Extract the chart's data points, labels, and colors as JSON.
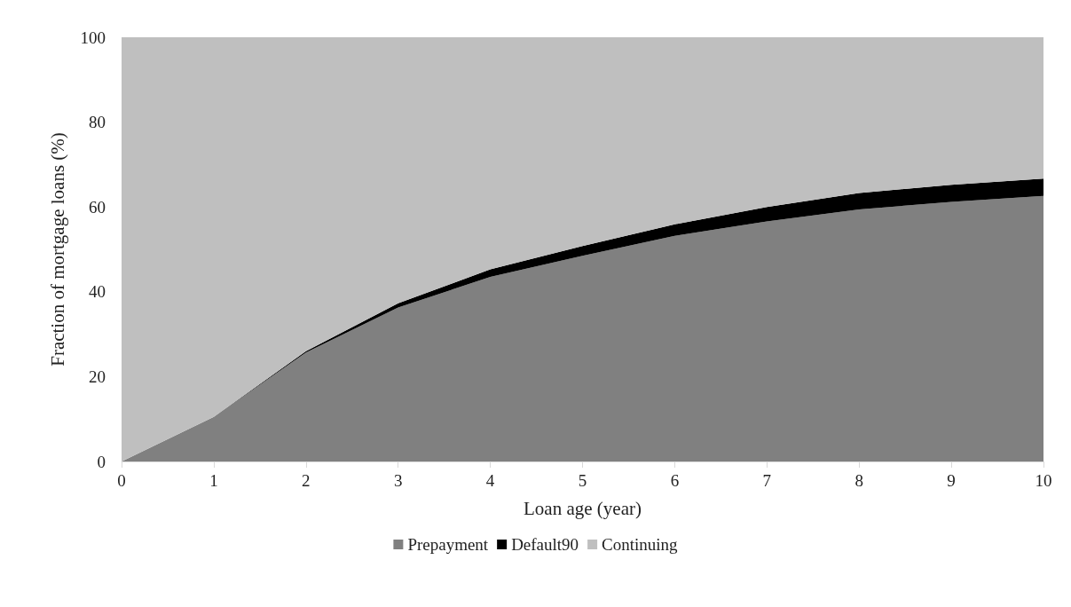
{
  "chart_data": {
    "type": "area",
    "stacked": true,
    "xlabel": "Loan age (year)",
    "ylabel": "Fraction of mortgage loans (%)",
    "categories": [
      "0",
      "1",
      "2",
      "3",
      "4",
      "5",
      "6",
      "7",
      "8",
      "9",
      "10"
    ],
    "ylim": [
      0,
      100
    ],
    "yticks": [
      0,
      20,
      40,
      60,
      80,
      100
    ],
    "grid": false,
    "legend": "bottom",
    "series": [
      {
        "name": "Prepayment",
        "color": "#808080",
        "values": [
          0,
          10.5,
          25.7,
          36.3,
          43.5,
          48.5,
          53.2,
          56.6,
          59.4,
          61.2,
          62.6
        ]
      },
      {
        "name": "Default90",
        "color": "#000000",
        "values": [
          0,
          0,
          0.3,
          1.0,
          1.8,
          2.3,
          2.7,
          3.4,
          3.9,
          4.0,
          4.1
        ]
      },
      {
        "name": "Continuing",
        "color": "#bfbfbf",
        "values": [
          100,
          89.5,
          74,
          62.7,
          54.7,
          49.2,
          44.1,
          40,
          36.7,
          34.8,
          33.3
        ]
      }
    ]
  }
}
